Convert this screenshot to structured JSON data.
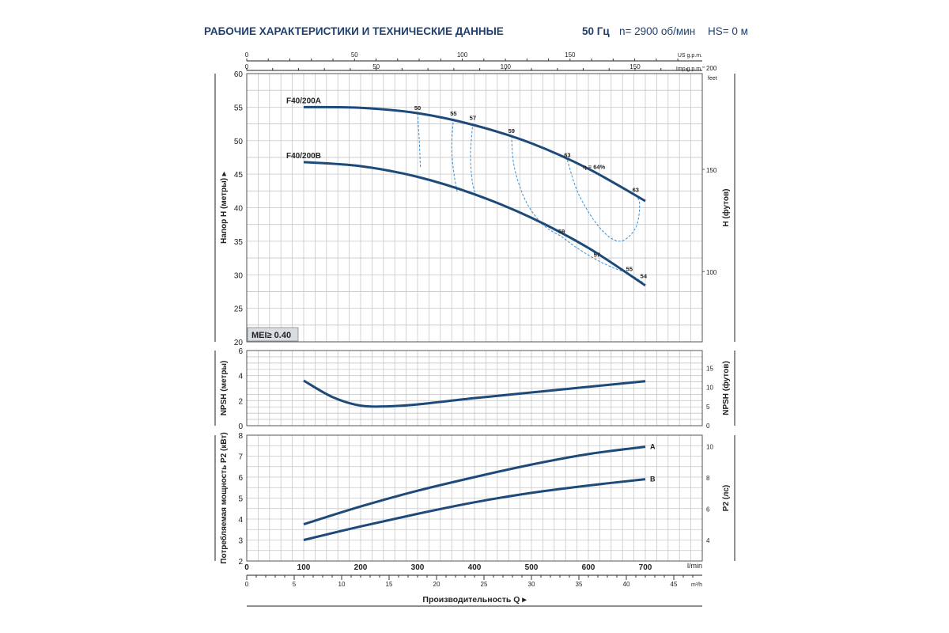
{
  "header": {
    "title": "РАБОЧИЕ ХАРАКТЕРИСТИКИ И ТЕХНИЧЕСКИЕ ДАННЫЕ",
    "freq": "50 Гц",
    "speed": "n= 2900 об/мин",
    "hs": "HS= 0 м"
  },
  "colors": {
    "curve": "#1e4a7a",
    "grid": "#c8c8c8",
    "efficiency": "#3a8fd0",
    "header": "#1e3f6e",
    "mei_bg": "#d9dde2"
  },
  "chart_data": [
    {
      "type": "line",
      "name": "head",
      "ylabel": "Напор H (метры)",
      "ylabel_right": "H (футов)",
      "ylim": [
        20,
        60
      ],
      "yticks": [
        20,
        25,
        30,
        35,
        40,
        45,
        50,
        55,
        60
      ],
      "yticks_right": [
        100,
        150,
        200
      ],
      "right_unit": "feet",
      "top_axis_usgpm": {
        "label": "US g.p.m.",
        "ticks": [
          0,
          50,
          100,
          150
        ]
      },
      "top_axis_impgpm": {
        "label": "Imp.g.p.m.",
        "ticks": [
          0,
          50,
          100,
          150
        ]
      },
      "series": [
        {
          "name": "F40/200A",
          "x": [
            100,
            200,
            300,
            400,
            500,
            600,
            700
          ],
          "y": [
            55.0,
            54.9,
            54.1,
            52.3,
            49.6,
            45.8,
            41.0
          ]
        },
        {
          "name": "F40/200B",
          "x": [
            100,
            200,
            300,
            400,
            500,
            600,
            700
          ],
          "y": [
            46.8,
            46.2,
            44.6,
            42.0,
            38.5,
            34.0,
            28.4
          ]
        }
      ],
      "efficiency_labels": [
        {
          "text": "50",
          "x": 300,
          "y": 54.1
        },
        {
          "text": "55",
          "x": 363,
          "y": 53.3
        },
        {
          "text": "57",
          "x": 397,
          "y": 52.6
        },
        {
          "text": "59",
          "x": 465,
          "y": 50.7
        },
        {
          "text": "63",
          "x": 563,
          "y": 47.1
        },
        {
          "text": "η = 64%",
          "x": 610,
          "y": 45.3
        },
        {
          "text": "63",
          "x": 683,
          "y": 41.9
        },
        {
          "text": "59",
          "x": 553,
          "y": 35.7
        },
        {
          "text": "57",
          "x": 615,
          "y": 32.2
        },
        {
          "text": "55",
          "x": 672,
          "y": 30.1
        },
        {
          "text": "54",
          "x": 697,
          "y": 29.0
        }
      ],
      "mei_label": "MEI≥ 0.40"
    },
    {
      "type": "line",
      "name": "npsh",
      "ylabel": "NPSH (метры)",
      "ylabel_right": "NPSH (футов)",
      "ylim": [
        0,
        6
      ],
      "yticks": [
        0,
        2,
        4,
        6
      ],
      "yticks_right": [
        0,
        5,
        10,
        15
      ],
      "series": [
        {
          "name": "NPSH",
          "x": [
            100,
            150,
            200,
            250,
            300,
            400,
            500,
            600,
            700
          ],
          "y": [
            3.6,
            2.3,
            1.6,
            1.55,
            1.7,
            2.2,
            2.65,
            3.1,
            3.55
          ]
        }
      ]
    },
    {
      "type": "line",
      "name": "power",
      "ylabel": "Потребляемая мощность P2 (кВт)",
      "ylabel_right": "P2 (лс)",
      "ylim": [
        2,
        8
      ],
      "yticks": [
        2,
        3,
        4,
        5,
        6,
        7,
        8
      ],
      "yticks_right": [
        4,
        6,
        8,
        10
      ],
      "xlabel": "Производительность Q",
      "xlim": [
        0,
        800
      ],
      "xticks_lmin": [
        0,
        100,
        200,
        300,
        400,
        500,
        600,
        700
      ],
      "x_unit_lmin": "l/min",
      "xticks_m3h": [
        0,
        5,
        10,
        15,
        20,
        25,
        30,
        35,
        40,
        45
      ],
      "x_unit_m3h": "m³/h",
      "series": [
        {
          "name": "A",
          "x": [
            100,
            200,
            300,
            400,
            500,
            600,
            700
          ],
          "y": [
            3.75,
            4.6,
            5.35,
            6.0,
            6.6,
            7.1,
            7.45
          ]
        },
        {
          "name": "B",
          "x": [
            100,
            200,
            300,
            400,
            500,
            600,
            700
          ],
          "y": [
            3.0,
            3.65,
            4.25,
            4.8,
            5.25,
            5.6,
            5.9
          ]
        }
      ]
    }
  ]
}
